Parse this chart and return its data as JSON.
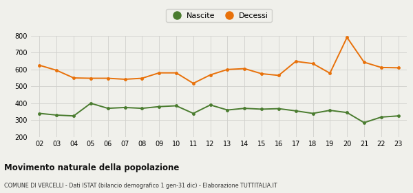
{
  "years": [
    "02",
    "03",
    "04",
    "05",
    "06",
    "07",
    "08",
    "09",
    "10",
    "11",
    "12",
    "13",
    "14",
    "15",
    "16",
    "17",
    "18",
    "19",
    "20",
    "21",
    "22",
    "23"
  ],
  "nascite": [
    340,
    330,
    325,
    400,
    370,
    375,
    370,
    380,
    385,
    340,
    390,
    360,
    370,
    365,
    368,
    355,
    340,
    358,
    345,
    285,
    318,
    325
  ],
  "decessi": [
    625,
    595,
    550,
    548,
    548,
    542,
    548,
    580,
    580,
    518,
    568,
    600,
    605,
    575,
    565,
    648,
    635,
    578,
    790,
    643,
    612,
    610
  ],
  "nascite_color": "#4a7c2f",
  "decessi_color": "#e8710a",
  "bg_color": "#f0f0eb",
  "grid_color": "#d0d0cc",
  "ylim": [
    200,
    800
  ],
  "yticks": [
    200,
    300,
    400,
    500,
    600,
    700,
    800
  ],
  "title": "Movimento naturale della popolazione",
  "subtitle": "COMUNE DI VERCELLI - Dati ISTAT (bilancio demografico 1 gen-31 dic) - Elaborazione TUTTITALIA.IT",
  "legend_nascite": "Nascite",
  "legend_decessi": "Decessi",
  "marker_size": 3.5,
  "line_width": 1.4
}
